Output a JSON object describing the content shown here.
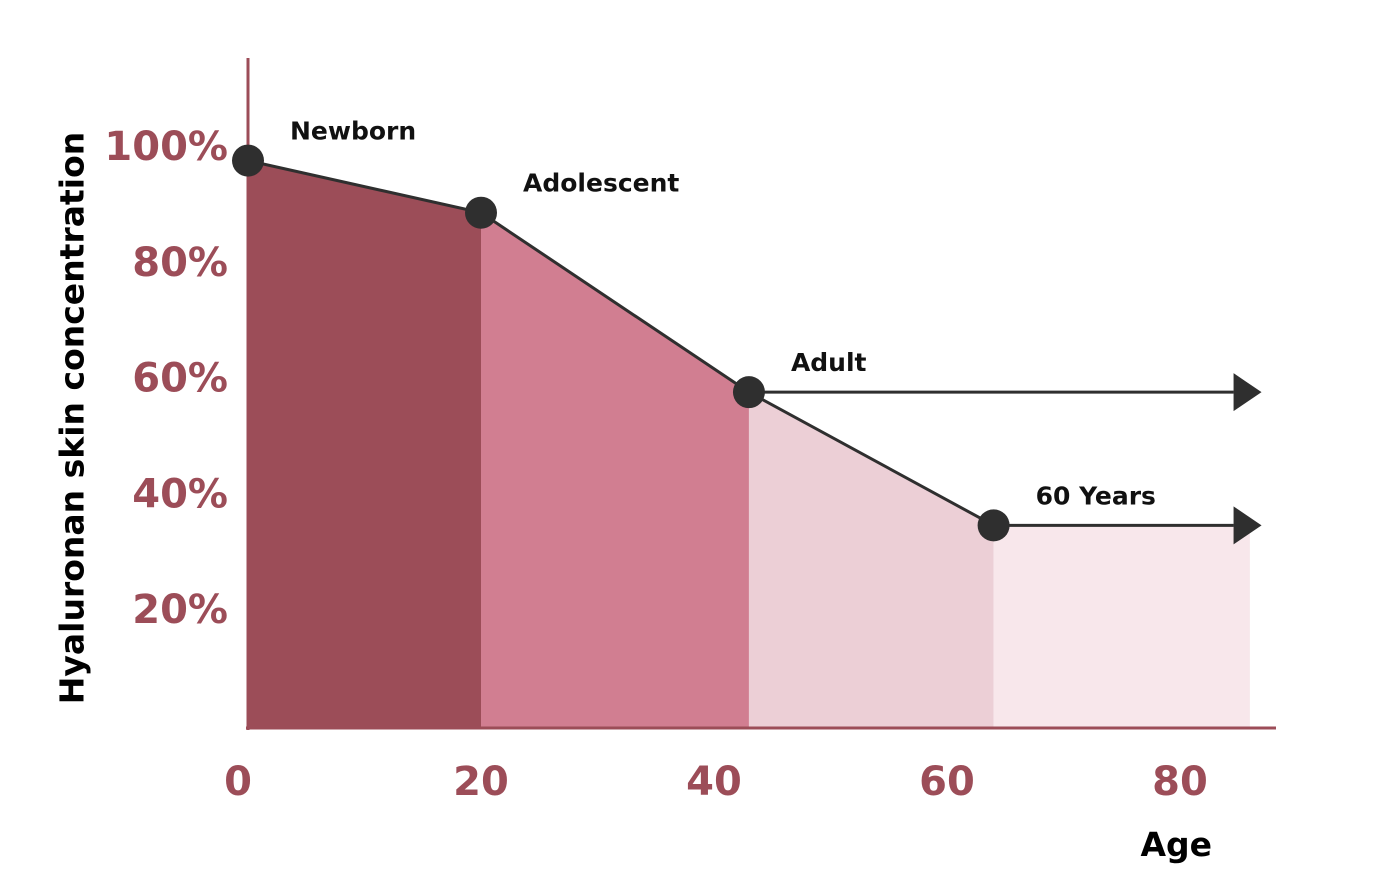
{
  "chart_data": {
    "type": "area",
    "xlabel": "Age",
    "ylabel": "Hyaluronan skin concentration",
    "xlim": [
      0,
      88
    ],
    "ylim": [
      0,
      110
    ],
    "x_ticks": [
      "0",
      "20",
      "40",
      "60",
      "80"
    ],
    "y_ticks": [
      "20%",
      "40%",
      "60%",
      "80%",
      "100%"
    ],
    "x_tick_values": [
      0,
      20,
      40,
      60,
      80
    ],
    "y_tick_values": [
      20,
      40,
      60,
      80,
      100
    ],
    "series": [
      {
        "points": [
          {
            "x": 0,
            "y": 98,
            "label": "Newborn"
          },
          {
            "x": 20,
            "y": 89,
            "label": "Adolescent"
          },
          {
            "x": 43,
            "y": 58,
            "label": "Adult"
          },
          {
            "x": 64,
            "y": 35,
            "label": "60 Years"
          }
        ]
      }
    ],
    "bands": [
      {
        "from": 0,
        "to": 20,
        "color": "#9c4d58"
      },
      {
        "from": 20,
        "to": 43,
        "color": "#d17e91"
      },
      {
        "from": 43,
        "to": 64,
        "color": "#eccfd6"
      },
      {
        "from": 64,
        "to": 86,
        "color": "#f8e7eb"
      }
    ],
    "arrows": [
      {
        "from_x": 43,
        "to_x": 87,
        "y": 58
      },
      {
        "from_x": 64,
        "to_x": 87,
        "y": 35
      }
    ],
    "colors": {
      "axis": "#9c4d58",
      "tick_text": "#9c4d58",
      "line": "#2f2f2f",
      "marker": "#2f2f2f"
    },
    "grid": false
  }
}
